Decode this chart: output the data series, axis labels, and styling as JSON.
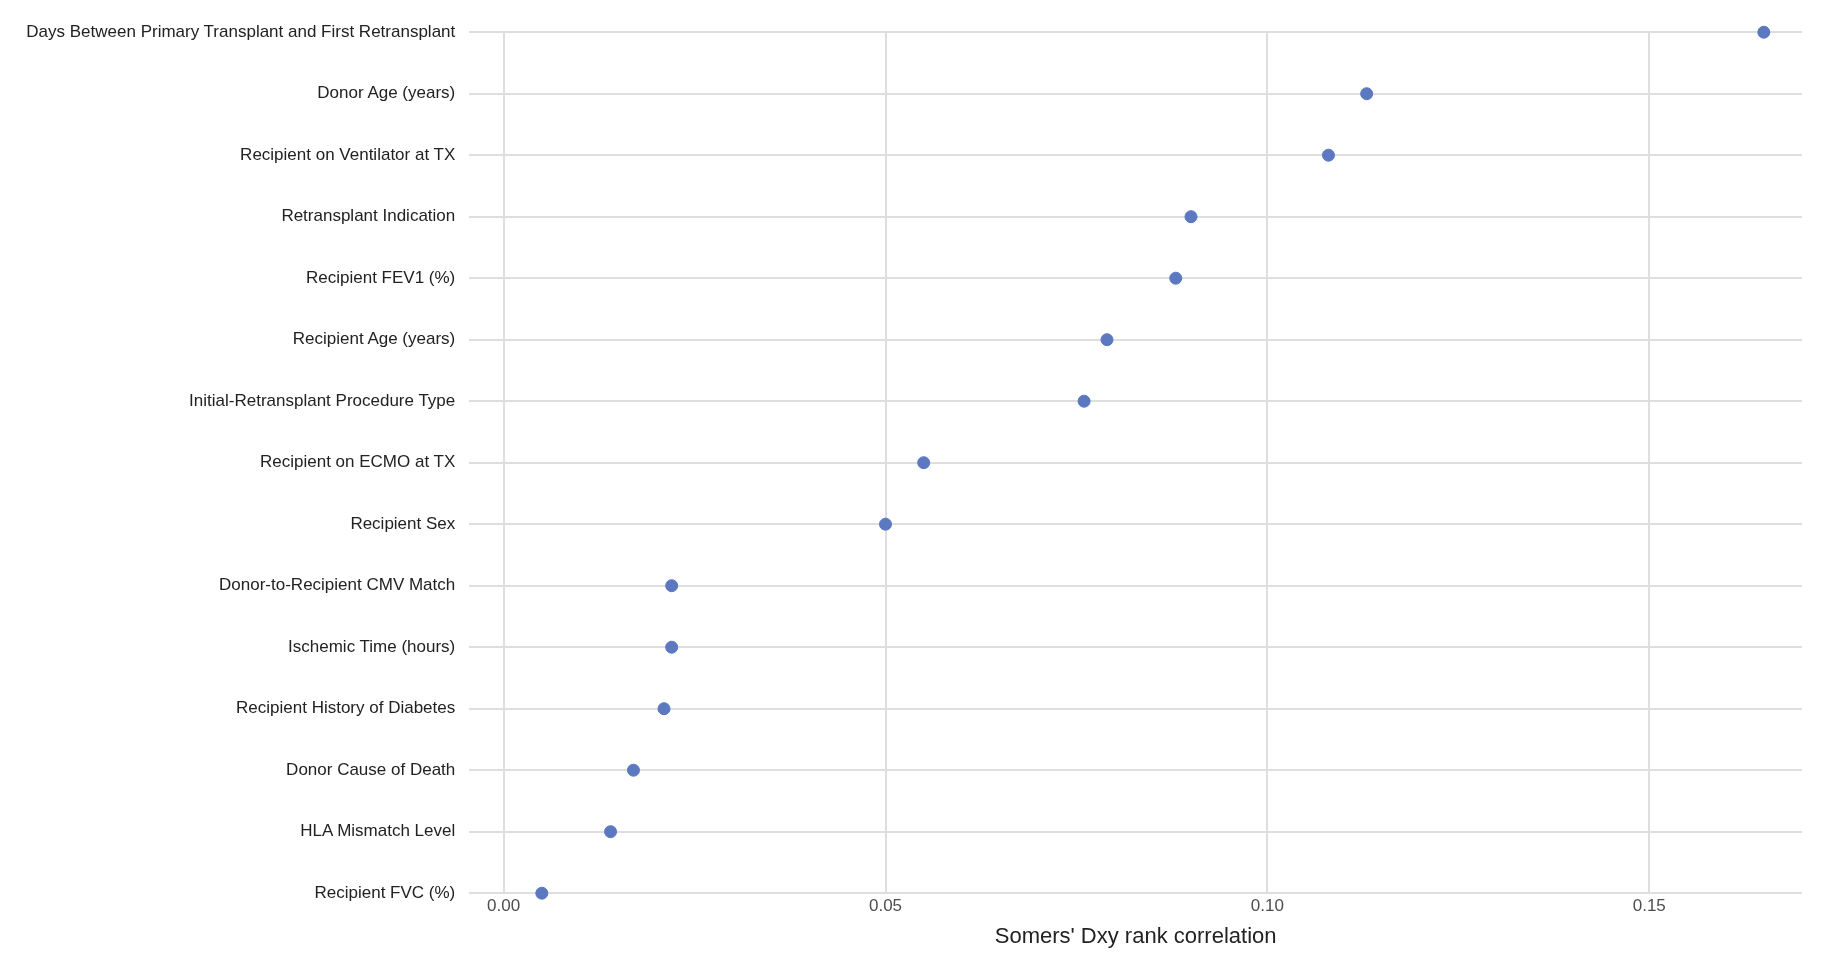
{
  "chart_data": {
    "type": "scatter",
    "orientation": "horizontal",
    "xlabel": "Somers' Dxy rank correlation",
    "categories": [
      "Days Between Primary Transplant and First Retransplant",
      "Donor Age (years)",
      "Recipient on Ventilator at TX",
      "Retransplant Indication",
      "Recipient FEV1 (%)",
      "Recipient Age (years)",
      "Initial-Retransplant Procedure Type",
      "Recipient on ECMO at TX",
      "Recipient Sex",
      "Donor-to-Recipient CMV Match",
      "Ischemic Time (hours)",
      "Recipient History of Diabetes",
      "Donor Cause of Death",
      "HLA Mismatch Level",
      "Recipient FVC (%)"
    ],
    "values": [
      0.165,
      0.113,
      0.108,
      0.09,
      0.088,
      0.079,
      0.076,
      0.055,
      0.05,
      0.022,
      0.022,
      0.021,
      0.017,
      0.014,
      0.005
    ],
    "color": "#5b78c0",
    "marker": "circle",
    "grid": true,
    "legend": false,
    "xlim": [
      -0.0045,
      0.17
    ],
    "xticks": [
      {
        "value": 0,
        "label": "0.00"
      },
      {
        "value": 0.05,
        "label": "0.05"
      },
      {
        "value": 0.1,
        "label": "0.10"
      },
      {
        "value": 0.15,
        "label": "0.15"
      }
    ]
  }
}
